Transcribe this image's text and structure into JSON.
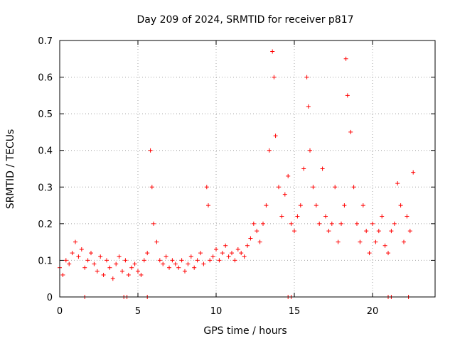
{
  "chart_data": {
    "type": "scatter",
    "title": "Day 209 of 2024, SRMTID for receiver p817",
    "xlabel": "GPS time / hours",
    "ylabel": "SRMTID / TECUs",
    "xlim": [
      0,
      24
    ],
    "ylim": [
      0,
      0.7
    ],
    "xticks": [
      "0",
      "5",
      "10",
      "15",
      "20"
    ],
    "yticks": [
      "0",
      "0.1",
      "0.2",
      "0.3",
      "0.4",
      "0.5",
      "0.6",
      "0.7"
    ],
    "grid": true,
    "marker": "plus",
    "series": [
      {
        "name": "SRMTID",
        "color": "#ff0000",
        "x": [
          0.0,
          0.2,
          0.4,
          0.6,
          0.8,
          1.0,
          1.2,
          1.4,
          1.6,
          1.8,
          2.0,
          2.2,
          2.4,
          2.6,
          2.8,
          3.0,
          3.2,
          3.4,
          3.6,
          3.8,
          4.0,
          4.2,
          4.4,
          4.6,
          4.8,
          5.0,
          5.2,
          5.4,
          5.6,
          5.8,
          5.9,
          6.0,
          6.2,
          6.4,
          6.6,
          6.8,
          7.0,
          7.2,
          7.4,
          7.6,
          7.8,
          8.0,
          8.2,
          8.4,
          8.6,
          8.8,
          9.0,
          9.2,
          9.4,
          9.5,
          9.6,
          9.8,
          10.0,
          10.2,
          10.4,
          10.6,
          10.8,
          11.0,
          11.2,
          11.4,
          11.6,
          11.8,
          12.0,
          12.2,
          12.4,
          12.6,
          12.8,
          13.0,
          13.2,
          13.4,
          13.6,
          13.7,
          13.8,
          14.0,
          14.2,
          14.4,
          14.6,
          14.8,
          15.0,
          15.2,
          15.4,
          15.6,
          15.8,
          15.9,
          16.0,
          16.2,
          16.4,
          16.6,
          16.8,
          17.0,
          17.2,
          17.4,
          17.6,
          17.8,
          18.0,
          18.2,
          18.3,
          18.4,
          18.6,
          18.8,
          19.0,
          19.2,
          19.4,
          19.6,
          19.8,
          20.0,
          20.2,
          20.4,
          20.6,
          20.8,
          21.0,
          21.2,
          21.4,
          21.6,
          21.8,
          22.0,
          22.2,
          22.4,
          22.6,
          1.6,
          4.1,
          4.3,
          5.6,
          14.6,
          14.8,
          21.0,
          21.2,
          22.3
        ],
        "y": [
          0.08,
          0.06,
          0.1,
          0.09,
          0.12,
          0.15,
          0.11,
          0.13,
          0.08,
          0.1,
          0.12,
          0.09,
          0.07,
          0.11,
          0.06,
          0.1,
          0.08,
          0.05,
          0.09,
          0.11,
          0.07,
          0.1,
          0.06,
          0.08,
          0.09,
          0.07,
          0.06,
          0.1,
          0.12,
          0.4,
          0.3,
          0.2,
          0.15,
          0.1,
          0.09,
          0.11,
          0.08,
          0.1,
          0.09,
          0.08,
          0.1,
          0.07,
          0.09,
          0.11,
          0.08,
          0.1,
          0.12,
          0.09,
          0.3,
          0.25,
          0.1,
          0.11,
          0.13,
          0.1,
          0.12,
          0.14,
          0.11,
          0.12,
          0.1,
          0.13,
          0.12,
          0.11,
          0.14,
          0.16,
          0.2,
          0.18,
          0.15,
          0.2,
          0.25,
          0.4,
          0.67,
          0.6,
          0.44,
          0.3,
          0.22,
          0.28,
          0.33,
          0.2,
          0.18,
          0.22,
          0.25,
          0.35,
          0.6,
          0.52,
          0.4,
          0.3,
          0.25,
          0.2,
          0.35,
          0.22,
          0.18,
          0.2,
          0.3,
          0.15,
          0.2,
          0.25,
          0.65,
          0.55,
          0.45,
          0.3,
          0.2,
          0.15,
          0.25,
          0.18,
          0.12,
          0.2,
          0.15,
          0.18,
          0.22,
          0.14,
          0.12,
          0.18,
          0.2,
          0.31,
          0.25,
          0.15,
          0.22,
          0.18,
          0.34,
          0,
          0,
          0,
          0,
          0,
          0,
          0,
          0,
          0
        ]
      }
    ]
  }
}
